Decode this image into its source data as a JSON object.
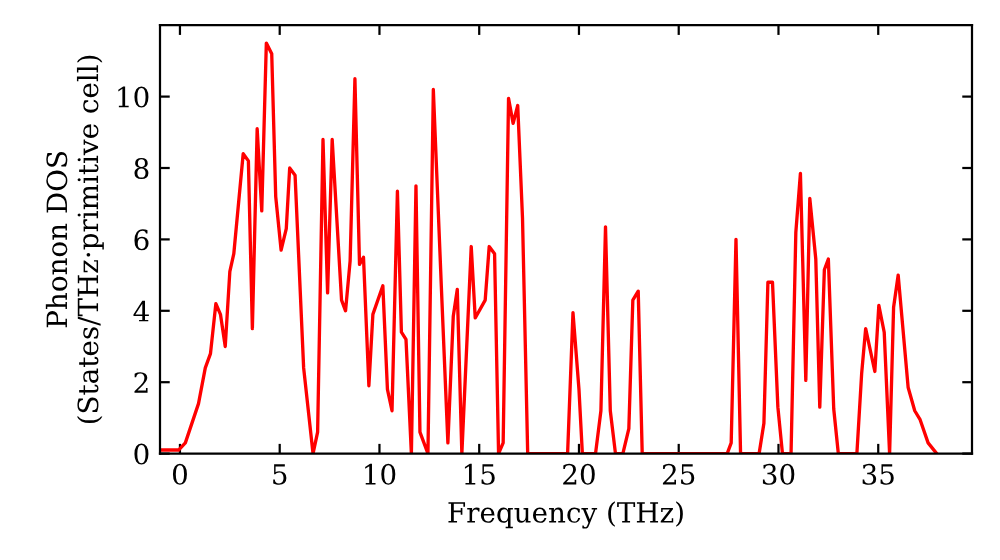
{
  "chart_data": {
    "type": "line",
    "xlabel": "Frequency (THz)",
    "ylabel": "Phonon DOS\n(States/THz·primitive cell)",
    "xlim": [
      -1,
      39.7
    ],
    "ylim": [
      0,
      12
    ],
    "xticks": [
      0,
      5,
      10,
      15,
      20,
      25,
      30,
      35
    ],
    "yticks": [
      0,
      2,
      4,
      6,
      8,
      10
    ],
    "grid": false,
    "legend": false,
    "marker": "none",
    "line_style": "solid",
    "series": [
      {
        "color": "#ff0000",
        "x": [
          -1,
          -0.07,
          0.27,
          0.93,
          1.27,
          1.53,
          1.8,
          2.03,
          2.27,
          2.5,
          2.7,
          3.17,
          3.43,
          3.63,
          3.87,
          4.1,
          4.33,
          4.6,
          4.8,
          5.07,
          5.33,
          5.5,
          5.77,
          6.2,
          6.67,
          6.9,
          7.17,
          7.4,
          7.63,
          8.1,
          8.3,
          8.53,
          8.77,
          9.0,
          9.2,
          9.47,
          9.67,
          10.17,
          10.4,
          10.63,
          10.9,
          11.1,
          11.33,
          11.6,
          11.83,
          12.03,
          12.43,
          12.7,
          13.1,
          13.43,
          13.7,
          13.9,
          14.13,
          14.6,
          14.8,
          15.3,
          15.5,
          15.77,
          15.97,
          16.2,
          16.47,
          16.7,
          16.93,
          17.17,
          17.43,
          19.43,
          19.7,
          20.0,
          20.17,
          20.83,
          21.1,
          21.33,
          21.57,
          21.83,
          22.2,
          22.5,
          22.7,
          22.97,
          23.17,
          27.43,
          27.63,
          27.87,
          28.1,
          29.03,
          29.27,
          29.47,
          29.7,
          29.97,
          30.2,
          30.63,
          30.87,
          31.1,
          31.37,
          31.57,
          31.87,
          32.07,
          32.3,
          32.5,
          32.77,
          33.0,
          33.93,
          34.17,
          34.37,
          34.83,
          35.03,
          35.3,
          35.57,
          35.77,
          36.0,
          36.5,
          36.83,
          37.1,
          37.5,
          37.93
        ],
        "values": [
          0.1,
          0.1,
          0.3,
          1.4,
          2.4,
          2.8,
          4.2,
          3.9,
          3.0,
          5.1,
          5.6,
          8.4,
          8.2,
          3.5,
          9.1,
          6.8,
          11.5,
          11.2,
          7.2,
          5.7,
          6.3,
          8.0,
          7.8,
          2.4,
          0,
          0.6,
          8.8,
          4.5,
          8.8,
          4.3,
          4.0,
          5.4,
          10.5,
          5.3,
          5.5,
          1.9,
          3.9,
          4.7,
          1.8,
          1.2,
          7.35,
          3.4,
          3.2,
          0,
          7.5,
          0.6,
          0,
          10.2,
          4.7,
          0.3,
          3.85,
          4.6,
          0,
          5.8,
          3.8,
          4.3,
          5.8,
          5.6,
          0,
          0.3,
          9.95,
          9.25,
          9.75,
          6.6,
          0,
          0,
          3.95,
          1.8,
          0,
          0,
          1.2,
          6.35,
          1.2,
          0,
          0,
          0.7,
          4.3,
          4.55,
          0,
          0,
          0.3,
          6.0,
          0,
          0,
          0.85,
          4.8,
          4.8,
          1.3,
          0,
          0,
          6.2,
          7.85,
          2.05,
          7.15,
          5.45,
          1.3,
          5.15,
          5.45,
          1.25,
          0,
          0,
          2.25,
          3.5,
          2.3,
          4.15,
          3.4,
          0,
          4.1,
          5.0,
          1.85,
          1.2,
          0.95,
          0.3,
          0
        ]
      }
    ]
  }
}
